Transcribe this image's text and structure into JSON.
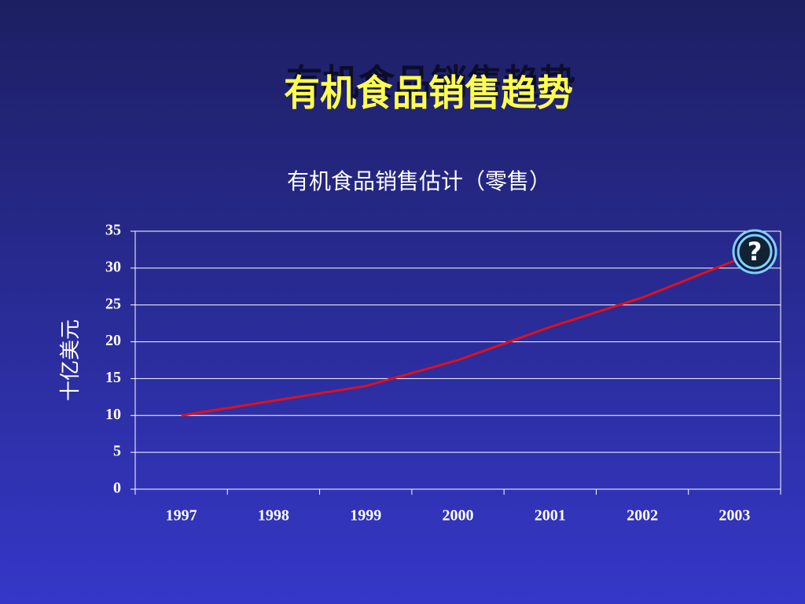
{
  "chart_data": {
    "type": "line",
    "title": "有机食品销售趋势",
    "subtitle": "有机食品销售估计（零售）",
    "y_label": "十亿美元",
    "categories": [
      "1997",
      "1998",
      "1999",
      "2000",
      "2001",
      "2002",
      "2003"
    ],
    "values": [
      10,
      12,
      14,
      17.5,
      22,
      26,
      31
    ],
    "color": "#e0101a",
    "ylim": [
      0,
      35
    ],
    "yticks": [
      0,
      5,
      10,
      15,
      20,
      25,
      30,
      35
    ],
    "grid": true
  }
}
